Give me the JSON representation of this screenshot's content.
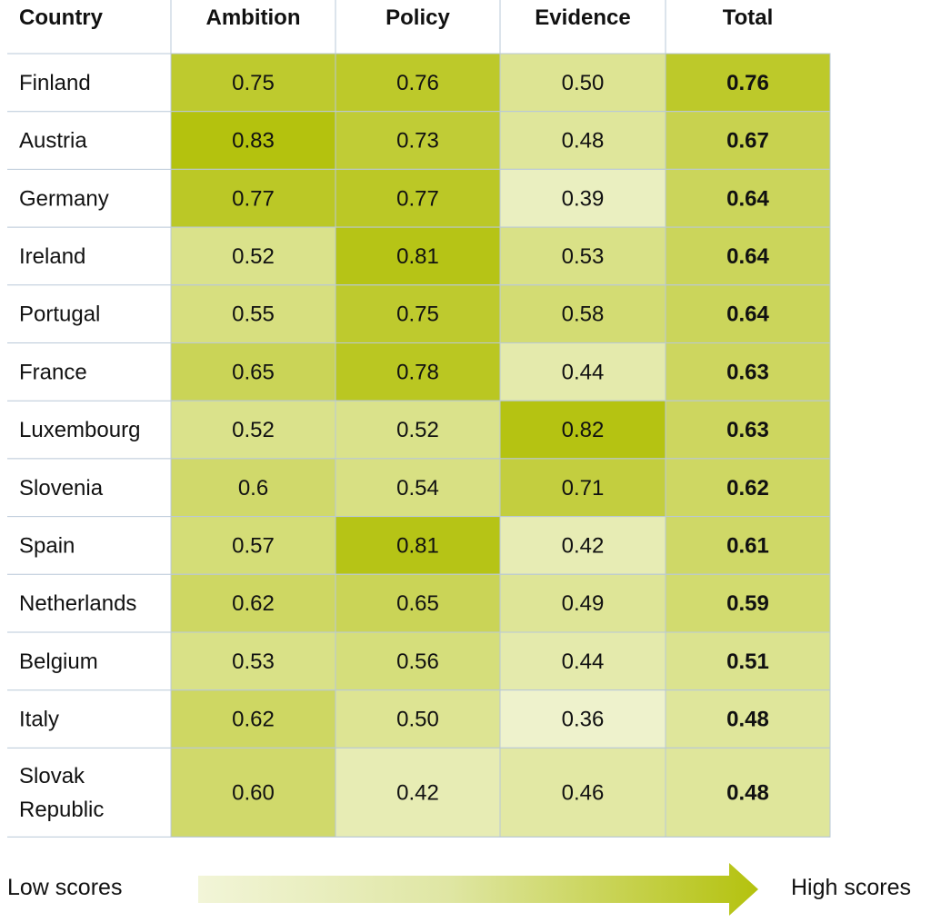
{
  "chart_data": {
    "type": "heatmap",
    "headers": [
      "Country",
      "Ambition",
      "Policy",
      "Evidence",
      "Total"
    ],
    "rows": [
      {
        "country": [
          "Finland"
        ],
        "ambition": "0.75",
        "policy": "0.76",
        "evidence": "0.50",
        "total": "0.76"
      },
      {
        "country": [
          "Austria"
        ],
        "ambition": "0.83",
        "policy": "0.73",
        "evidence": "0.48",
        "total": "0.67"
      },
      {
        "country": [
          "Germany"
        ],
        "ambition": "0.77",
        "policy": "0.77",
        "evidence": "0.39",
        "total": "0.64"
      },
      {
        "country": [
          "Ireland"
        ],
        "ambition": "0.52",
        "policy": "0.81",
        "evidence": "0.53",
        "total": "0.64"
      },
      {
        "country": [
          "Portugal"
        ],
        "ambition": "0.55",
        "policy": "0.75",
        "evidence": "0.58",
        "total": "0.64"
      },
      {
        "country": [
          "France"
        ],
        "ambition": "0.65",
        "policy": "0.78",
        "evidence": "0.44",
        "total": "0.63"
      },
      {
        "country": [
          "Luxembourg"
        ],
        "ambition": "0.52",
        "policy": "0.52",
        "evidence": "0.82",
        "total": "0.63"
      },
      {
        "country": [
          "Slovenia"
        ],
        "ambition": "0.6",
        "policy": "0.54",
        "evidence": "0.71",
        "total": "0.62"
      },
      {
        "country": [
          "Spain"
        ],
        "ambition": "0.57",
        "policy": "0.81",
        "evidence": "0.42",
        "total": "0.61"
      },
      {
        "country": [
          "Netherlands"
        ],
        "ambition": "0.62",
        "policy": "0.65",
        "evidence": "0.49",
        "total": "0.59"
      },
      {
        "country": [
          "Belgium"
        ],
        "ambition": "0.53",
        "policy": "0.56",
        "evidence": "0.44",
        "total": "0.51"
      },
      {
        "country": [
          "Italy"
        ],
        "ambition": "0.62",
        "policy": "0.50",
        "evidence": "0.36",
        "total": "0.48"
      },
      {
        "country": [
          "Slovak",
          "Republic"
        ],
        "ambition": "0.60",
        "policy": "0.42",
        "evidence": "0.46",
        "total": "0.48"
      }
    ],
    "color_scale": {
      "low": "#eef2cc",
      "high": "#b4c20e",
      "min": 0.36,
      "max": 0.83
    },
    "grid_color": "#b9c8d8",
    "legend": {
      "low_label": "Low scores",
      "high_label": "High scores"
    }
  }
}
